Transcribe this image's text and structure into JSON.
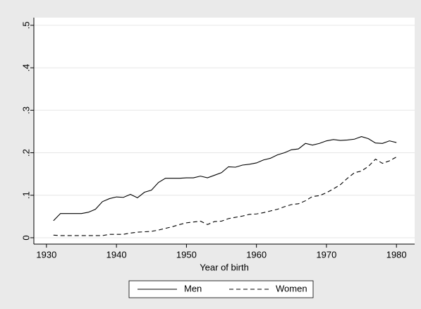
{
  "chart_data": {
    "type": "line",
    "xlabel": "Year of birth",
    "x": [
      1931,
      1932,
      1933,
      1934,
      1935,
      1936,
      1937,
      1938,
      1939,
      1940,
      1941,
      1942,
      1943,
      1944,
      1945,
      1946,
      1947,
      1948,
      1949,
      1950,
      1951,
      1952,
      1953,
      1954,
      1955,
      1956,
      1957,
      1958,
      1959,
      1960,
      1961,
      1962,
      1963,
      1964,
      1965,
      1966,
      1967,
      1968,
      1969,
      1970,
      1971,
      1972,
      1973,
      1974,
      1975,
      1976,
      1977,
      1978,
      1979,
      1980
    ],
    "series": [
      {
        "name": "Men",
        "color": "#000000",
        "dash": "solid",
        "values": [
          0.04,
          0.057,
          0.057,
          0.057,
          0.057,
          0.06,
          0.067,
          0.085,
          0.092,
          0.096,
          0.095,
          0.102,
          0.094,
          0.107,
          0.112,
          0.13,
          0.14,
          0.14,
          0.14,
          0.141,
          0.141,
          0.145,
          0.141,
          0.147,
          0.153,
          0.167,
          0.166,
          0.171,
          0.173,
          0.176,
          0.183,
          0.187,
          0.195,
          0.2,
          0.207,
          0.209,
          0.222,
          0.218,
          0.222,
          0.228,
          0.231,
          0.229,
          0.23,
          0.232,
          0.238,
          0.233,
          0.223,
          0.222,
          0.228,
          0.224
        ]
      },
      {
        "name": "Women",
        "color": "#000000",
        "dash": "dashed",
        "values": [
          0.006,
          0.005,
          0.005,
          0.005,
          0.005,
          0.005,
          0.005,
          0.005,
          0.008,
          0.008,
          0.008,
          0.011,
          0.013,
          0.014,
          0.015,
          0.018,
          0.022,
          0.026,
          0.031,
          0.035,
          0.037,
          0.039,
          0.031,
          0.038,
          0.039,
          0.045,
          0.048,
          0.051,
          0.055,
          0.056,
          0.059,
          0.063,
          0.067,
          0.073,
          0.078,
          0.08,
          0.087,
          0.097,
          0.099,
          0.106,
          0.115,
          0.125,
          0.14,
          0.153,
          0.157,
          0.168,
          0.185,
          0.175,
          0.181,
          0.19
        ]
      }
    ],
    "xlim": [
      1928.2,
      1982.6
    ],
    "xticks": [
      1930,
      1940,
      1950,
      1960,
      1970,
      1980
    ],
    "ylim": [
      -0.015,
      0.518
    ],
    "yticks": [
      0,
      {
        "value": 0.1,
        "label": ".1"
      },
      {
        "value": 0.2,
        "label": ".2"
      },
      {
        "value": 0.3,
        "label": ".3"
      },
      {
        "value": 0.4,
        "label": ".4"
      },
      {
        "value": 0.5,
        "label": ".5"
      }
    ],
    "grid": true,
    "legend": "bottom"
  }
}
